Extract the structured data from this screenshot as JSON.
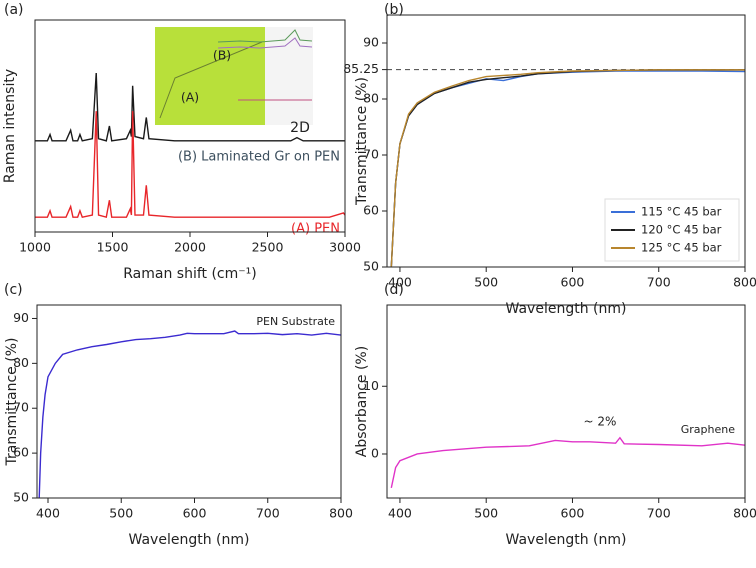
{
  "chart_data": [
    {
      "type": "line",
      "panel": "(a)",
      "xlabel": "Raman shift (cm⁻¹)",
      "ylabel": "Raman intensity",
      "xlim": [
        1000,
        3000
      ],
      "xticks": [
        1000,
        1500,
        2000,
        2500,
        3000
      ],
      "ylim": [
        0,
        100
      ],
      "x": [
        1000,
        1080,
        1097,
        1110,
        1200,
        1230,
        1245,
        1275,
        1290,
        1305,
        1370,
        1395,
        1410,
        1460,
        1480,
        1495,
        1590,
        1615,
        1622,
        1630,
        1645,
        1700,
        1718,
        1735,
        1900,
        2100,
        2300,
        2500,
        2650,
        2690,
        2730,
        2900,
        2990,
        3000
      ],
      "series": [
        {
          "name": "(B) Laminated Gr on PEN",
          "color": "#1a1a1a",
          "values": [
            43,
            43,
            46,
            43,
            43,
            48,
            43,
            43,
            46,
            43,
            44,
            75,
            44,
            43,
            50,
            43,
            44,
            48,
            45,
            69,
            45,
            44,
            54,
            44,
            43,
            43,
            43,
            43,
            43,
            44.5,
            43,
            43,
            43,
            43
          ]
        },
        {
          "name": "(A) PEN",
          "color": "#e8262a",
          "values": [
            7,
            7,
            10,
            7,
            7,
            12,
            7,
            7,
            10,
            7,
            8,
            57,
            8,
            7,
            15,
            7,
            7,
            11,
            8,
            57,
            8,
            8,
            22,
            8,
            7,
            7,
            7,
            7,
            7,
            7,
            7,
            7,
            9,
            8
          ]
        }
      ],
      "annotations": [
        "2D"
      ],
      "inset_labels": [
        "(B)",
        "(A)"
      ]
    },
    {
      "type": "line",
      "panel": "(b)",
      "xlabel": "Wavelength (nm)",
      "ylabel": "Transmittance (%)",
      "xlim": [
        385,
        800
      ],
      "xticks": [
        400,
        500,
        600,
        700,
        800
      ],
      "ylim": [
        50,
        95
      ],
      "yticks": [
        50,
        60,
        70,
        80,
        85.25,
        90
      ],
      "reference_line": 85.25,
      "legend": "lower right",
      "x": [
        390,
        395,
        400,
        410,
        420,
        440,
        460,
        480,
        500,
        520,
        540,
        560,
        600,
        650,
        700,
        750,
        800
      ],
      "series": [
        {
          "name": "115 °C 45 bar",
          "color": "#3a6fd8",
          "values": [
            50,
            65,
            72,
            77,
            79,
            81,
            82,
            82.8,
            83.6,
            83.3,
            84,
            84.5,
            84.8,
            85,
            85,
            85,
            84.9
          ]
        },
        {
          "name": "120 °C 45 bar",
          "color": "#222222",
          "values": [
            50,
            65,
            72,
            77,
            79,
            81,
            82,
            83,
            83.5,
            83.8,
            84.1,
            84.5,
            84.9,
            85.1,
            85.2,
            85.2,
            85.2
          ]
        },
        {
          "name": "125 °C 45 bar",
          "color": "#b8862e",
          "values": [
            50,
            65,
            72,
            77.3,
            79.3,
            81.2,
            82.3,
            83.3,
            84,
            84.2,
            84.4,
            84.7,
            85,
            85.1,
            85.2,
            85.2,
            85.2
          ]
        }
      ]
    },
    {
      "type": "line",
      "panel": "(c)",
      "xlabel": "Wavelength (nm)",
      "ylabel": "Transmittance (%)",
      "xlim": [
        385,
        800
      ],
      "xticks": [
        400,
        500,
        600,
        700,
        800
      ],
      "ylim": [
        50,
        93
      ],
      "yticks": [
        50,
        60,
        70,
        80,
        90
      ],
      "x": [
        388,
        390,
        393,
        396,
        400,
        410,
        420,
        440,
        460,
        480,
        500,
        520,
        540,
        560,
        580,
        590,
        600,
        620,
        640,
        655,
        660,
        680,
        700,
        720,
        740,
        760,
        780,
        800
      ],
      "series": [
        {
          "color": "#3b2bd0",
          "values": [
            50,
            60,
            68,
            73,
            77,
            80,
            82,
            83,
            83.7,
            84.2,
            84.8,
            85.3,
            85.5,
            85.8,
            86.3,
            86.7,
            86.6,
            86.6,
            86.6,
            87.2,
            86.6,
            86.6,
            86.7,
            86.4,
            86.6,
            86.3,
            86.7,
            86.3
          ]
        }
      ],
      "annotations": [
        "PEN Substrate"
      ]
    },
    {
      "type": "line",
      "panel": "(d)",
      "xlabel": "Wavelength (nm)",
      "ylabel": "Absorbance (%)",
      "xlim": [
        385,
        800
      ],
      "xticks": [
        400,
        500,
        600,
        700,
        800
      ],
      "ylim": [
        -6.5,
        22
      ],
      "yticks": [
        0,
        10
      ],
      "x": [
        390,
        395,
        400,
        420,
        450,
        500,
        550,
        580,
        600,
        620,
        650,
        655,
        660,
        700,
        750,
        780,
        800
      ],
      "series": [
        {
          "color": "#e033c8",
          "values": [
            -5,
            -2,
            -1,
            0,
            0.5,
            1,
            1.2,
            2,
            1.8,
            1.8,
            1.6,
            2.4,
            1.5,
            1.4,
            1.2,
            1.6,
            1.3
          ]
        }
      ],
      "annotations": [
        "~ 2%",
        "Graphene"
      ]
    }
  ]
}
